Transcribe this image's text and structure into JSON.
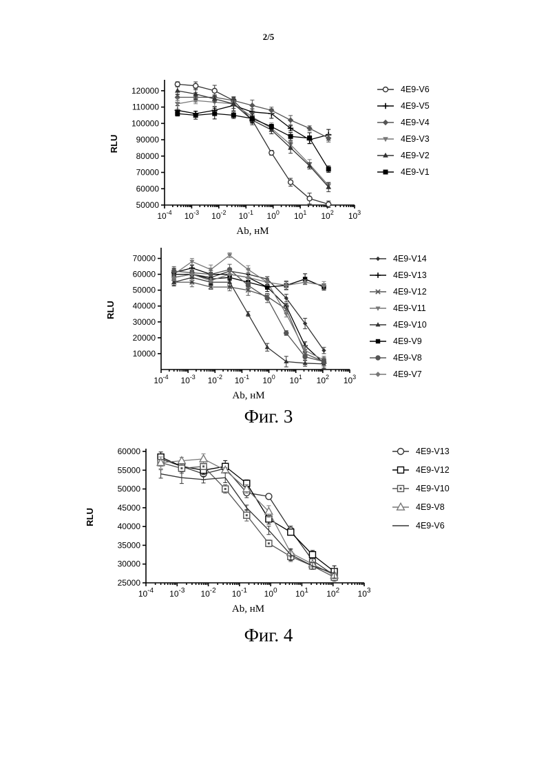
{
  "page_number": "2/5",
  "figures": [
    {
      "caption": "Фиг. 3"
    },
    {
      "caption": "Фиг. 4"
    }
  ],
  "colors": {
    "ink": "#000000",
    "dark_series": "#333333",
    "mid_series": "#555555",
    "light_series": "#777777"
  },
  "chart_data": [
    {
      "type": "line",
      "xscale": "log",
      "xlim": [
        0.0001,
        1000
      ],
      "ylim": [
        50000,
        125000
      ],
      "xlabel": "Ab, нМ",
      "ylabel": "RLU",
      "xticks": [
        "10-4",
        "10-3",
        "10-2",
        "10-1",
        "100",
        "101",
        "102",
        "103"
      ],
      "yticks": [
        50000,
        60000,
        70000,
        80000,
        90000,
        100000,
        110000,
        120000
      ],
      "legend": "right",
      "x": [
        0.0003,
        0.0014,
        0.007,
        0.035,
        0.17,
        0.87,
        4.4,
        22,
        110
      ],
      "series": [
        {
          "name": "4E9-V6",
          "marker": "circle-open",
          "values": [
            124000,
            123000,
            120000,
            114000,
            102000,
            82000,
            64000,
            54000,
            50500
          ]
        },
        {
          "name": "4E9-V5",
          "marker": "plus",
          "values": [
            108000,
            106000,
            108000,
            111000,
            107000,
            106000,
            97000,
            90000,
            93000
          ]
        },
        {
          "name": "4E9-V4",
          "marker": "diamond",
          "values": [
            116000,
            116000,
            116000,
            114000,
            111000,
            108000,
            102000,
            97000,
            91000
          ]
        },
        {
          "name": "4E9-V3",
          "marker": "triangle-down",
          "values": [
            112000,
            114000,
            113000,
            112000,
            104000,
            97000,
            87000,
            75000,
            62000
          ]
        },
        {
          "name": "4E9-V2",
          "marker": "triangle-up",
          "values": [
            120000,
            118000,
            115000,
            112000,
            102000,
            96000,
            85000,
            74000,
            61000
          ]
        },
        {
          "name": "4E9-V1",
          "marker": "square",
          "values": [
            106000,
            105000,
            106000,
            105000,
            103000,
            98000,
            92000,
            91000,
            72000
          ]
        }
      ]
    },
    {
      "type": "line",
      "xscale": "log",
      "xlim": [
        0.0001,
        1000
      ],
      "ylim": [
        0,
        75000
      ],
      "xlabel": "Ab, нМ",
      "ylabel": "RLU",
      "xticks": [
        "10-4",
        "10-3",
        "10-2",
        "10-1",
        "100",
        "101",
        "102",
        "103"
      ],
      "yticks": [
        10000,
        20000,
        30000,
        40000,
        50000,
        60000,
        70000
      ],
      "legend": "right",
      "x": [
        0.0003,
        0.0014,
        0.007,
        0.035,
        0.17,
        0.87,
        4.4,
        22,
        110
      ],
      "series": [
        {
          "name": "4E9-V14",
          "marker": "diamond-small",
          "values": [
            58000,
            60000,
            58000,
            62000,
            60000,
            57000,
            45000,
            29000,
            12000
          ]
        },
        {
          "name": "4E9-V13",
          "marker": "plus",
          "values": [
            61000,
            64000,
            60000,
            60000,
            58000,
            52000,
            40000,
            15000,
            4000
          ]
        },
        {
          "name": "4E9-V12",
          "marker": "cross",
          "values": [
            55000,
            55000,
            52000,
            52000,
            50000,
            46000,
            38000,
            10000,
            5000
          ]
        },
        {
          "name": "4E9-V11",
          "marker": "triangle-down",
          "values": [
            60000,
            68000,
            63000,
            72000,
            63000,
            55000,
            35000,
            12000,
            6000
          ]
        },
        {
          "name": "4E9-V10",
          "marker": "triangle-up",
          "values": [
            55000,
            58000,
            55000,
            55000,
            35000,
            14000,
            5000,
            4000,
            3500
          ]
        },
        {
          "name": "4E9-V9",
          "marker": "square",
          "values": [
            60000,
            60000,
            57000,
            58000,
            55000,
            52000,
            53000,
            57000,
            52000
          ]
        },
        {
          "name": "4E9-V8",
          "marker": "circle",
          "values": [
            62000,
            61000,
            60000,
            63000,
            53000,
            45000,
            23000,
            8000,
            5000
          ]
        },
        {
          "name": "4E9-V7",
          "marker": "diamond",
          "values": [
            58000,
            60000,
            56000,
            60000,
            58000,
            55000,
            53000,
            55000,
            53000
          ]
        }
      ]
    },
    {
      "type": "line",
      "xscale": "log",
      "xlim": [
        0.0001,
        1000
      ],
      "ylim": [
        25000,
        60000
      ],
      "xlabel": "Ab, нМ",
      "ylabel": "RLU",
      "xticks": [
        "10-4",
        "10-3",
        "10-2",
        "10-1",
        "100",
        "101",
        "102",
        "103"
      ],
      "yticks": [
        25000,
        30000,
        35000,
        40000,
        45000,
        50000,
        55000,
        60000
      ],
      "legend": "right",
      "x": [
        0.0003,
        0.0014,
        0.007,
        0.035,
        0.17,
        0.87,
        4.4,
        22,
        110
      ],
      "series": [
        {
          "name": "4E9-V13",
          "marker": "circle-open",
          "values": [
            58000,
            56000,
            54000,
            55500,
            49000,
            48000,
            39000,
            31000,
            27000
          ]
        },
        {
          "name": "4E9-V12",
          "marker": "square-open",
          "values": [
            58500,
            56000,
            55000,
            56000,
            51500,
            42000,
            38500,
            32500,
            28000
          ]
        },
        {
          "name": "4E9-V10",
          "marker": "square-open-dot",
          "values": [
            57000,
            55500,
            56000,
            50000,
            43000,
            35500,
            32000,
            29500,
            26500
          ]
        },
        {
          "name": "4E9-V8",
          "marker": "triangle-open",
          "values": [
            57000,
            57500,
            58000,
            55000,
            50000,
            44000,
            33000,
            30000,
            27000
          ]
        },
        {
          "name": "4E9-V6",
          "marker": "none",
          "values": [
            54000,
            53000,
            52500,
            53000,
            45000,
            39000,
            32500,
            29500,
            27500
          ]
        }
      ]
    }
  ]
}
